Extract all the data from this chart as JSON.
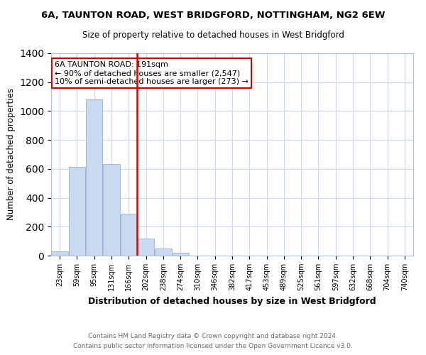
{
  "title": "6A, TAUNTON ROAD, WEST BRIDGFORD, NOTTINGHAM, NG2 6EW",
  "subtitle": "Size of property relative to detached houses in West Bridgford",
  "xlabel": "Distribution of detached houses by size in West Bridgford",
  "ylabel": "Number of detached properties",
  "bar_labels": [
    "23sqm",
    "59sqm",
    "95sqm",
    "131sqm",
    "166sqm",
    "202sqm",
    "238sqm",
    "274sqm",
    "310sqm",
    "346sqm",
    "382sqm",
    "417sqm",
    "453sqm",
    "489sqm",
    "525sqm",
    "561sqm",
    "597sqm",
    "632sqm",
    "668sqm",
    "704sqm",
    "740sqm"
  ],
  "bar_values": [
    30,
    614,
    1082,
    632,
    288,
    120,
    47,
    18,
    0,
    0,
    0,
    0,
    0,
    0,
    0,
    0,
    0,
    0,
    0,
    0,
    0
  ],
  "bar_color": "#c9d9f0",
  "bar_edge_color": "#a0b8d8",
  "vline_color": "#cc0000",
  "annotation_text": "6A TAUNTON ROAD: 191sqm\n← 90% of detached houses are smaller (2,547)\n10% of semi-detached houses are larger (273) →",
  "annotation_box_color": "#ffffff",
  "annotation_box_edge": "#cc0000",
  "ylim": [
    0,
    1400
  ],
  "yticks": [
    0,
    200,
    400,
    600,
    800,
    1000,
    1200,
    1400
  ],
  "footer_line1": "Contains HM Land Registry data © Crown copyright and database right 2024.",
  "footer_line2": "Contains public sector information licensed under the Open Government Licence v3.0.",
  "bg_color": "#ffffff",
  "grid_color": "#ccd9e8"
}
